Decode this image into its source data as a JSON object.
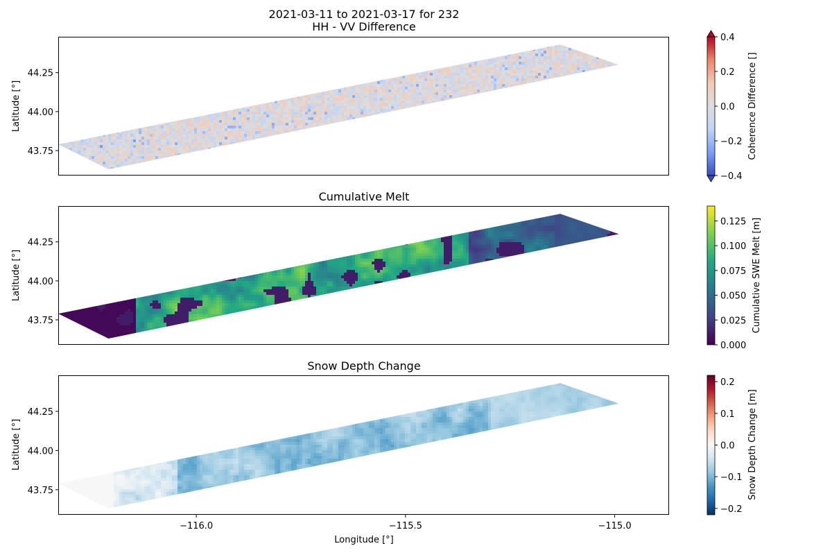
{
  "chart_data": [
    {
      "type": "heatmap",
      "title_line1": "2021-03-11 to 2021-03-17 for 232",
      "title_line2": "HH - VV Difference",
      "ylabel": "Latitude [°]",
      "xlabel": "",
      "xlim": [
        -116.33,
        -114.87
      ],
      "ylim": [
        43.59,
        44.48
      ],
      "yticks": [
        43.75,
        44.0,
        44.25
      ],
      "ytick_labels": [
        "43.75",
        "44.00",
        "44.25"
      ],
      "grid": false,
      "colormap": "coolwarm",
      "colorbar": {
        "label": "Coherence Difference []",
        "min": -0.4,
        "max": 0.4,
        "extend": "both",
        "ticks": [
          -0.4,
          -0.2,
          0.0,
          0.2,
          0.4
        ],
        "tick_labels": [
          "−0.4",
          "−0.2",
          "0.0",
          "0.2",
          "0.4"
        ],
        "colors": [
          "#3b4cc0",
          "#7b9ff9",
          "#c0d4f5",
          "#dddddd",
          "#f2cbb7",
          "#ee8468",
          "#b40426"
        ]
      }
    },
    {
      "type": "heatmap",
      "title": "Cumulative Melt",
      "ylabel": "Latitude [°]",
      "xlabel": "",
      "xlim": [
        -116.33,
        -114.87
      ],
      "ylim": [
        43.59,
        44.48
      ],
      "yticks": [
        43.75,
        44.0,
        44.25
      ],
      "ytick_labels": [
        "43.75",
        "44.00",
        "44.25"
      ],
      "grid": false,
      "colormap": "viridis",
      "colorbar": {
        "label": "Cumulative SWE Melt [m]",
        "min": 0.0,
        "max": 0.14,
        "extend": "neither",
        "ticks": [
          0.0,
          0.025,
          0.05,
          0.075,
          0.1,
          0.125
        ],
        "tick_labels": [
          "0.000",
          "0.025",
          "0.050",
          "0.075",
          "0.100",
          "0.125"
        ],
        "colors": [
          "#440154",
          "#414487",
          "#2a788e",
          "#22a884",
          "#7ad151",
          "#fde725"
        ]
      }
    },
    {
      "type": "heatmap",
      "title": "Snow Depth Change",
      "ylabel": "Latitude [°]",
      "xlabel": "Longitude [°]",
      "xlim": [
        -116.33,
        -114.87
      ],
      "ylim": [
        43.59,
        44.48
      ],
      "xticks": [
        -116.0,
        -115.5,
        -115.0
      ],
      "xtick_labels": [
        "−116.0",
        "−115.5",
        "−115.0"
      ],
      "yticks": [
        43.75,
        44.0,
        44.25
      ],
      "ytick_labels": [
        "43.75",
        "44.00",
        "44.25"
      ],
      "grid": false,
      "colormap": "RdBu_r",
      "colorbar": {
        "label": "Snow Depth Change [m]",
        "min": -0.22,
        "max": 0.22,
        "extend": "neither",
        "ticks": [
          -0.2,
          -0.1,
          0.0,
          0.1,
          0.2
        ],
        "tick_labels": [
          "−0.2",
          "−0.1",
          "0.0",
          "0.1",
          "0.2"
        ],
        "colors": [
          "#053061",
          "#2166ac",
          "#4393c3",
          "#92c5de",
          "#d1e5f0",
          "#f7f7f7",
          "#fddbc7",
          "#f4a582",
          "#d6604d",
          "#b2182b",
          "#67001f"
        ]
      }
    }
  ],
  "swath": {
    "outline_lonlat": [
      [
        -116.33,
        43.79
      ],
      [
        -115.13,
        44.43
      ],
      [
        -114.99,
        44.3
      ],
      [
        -116.21,
        43.63
      ]
    ]
  }
}
